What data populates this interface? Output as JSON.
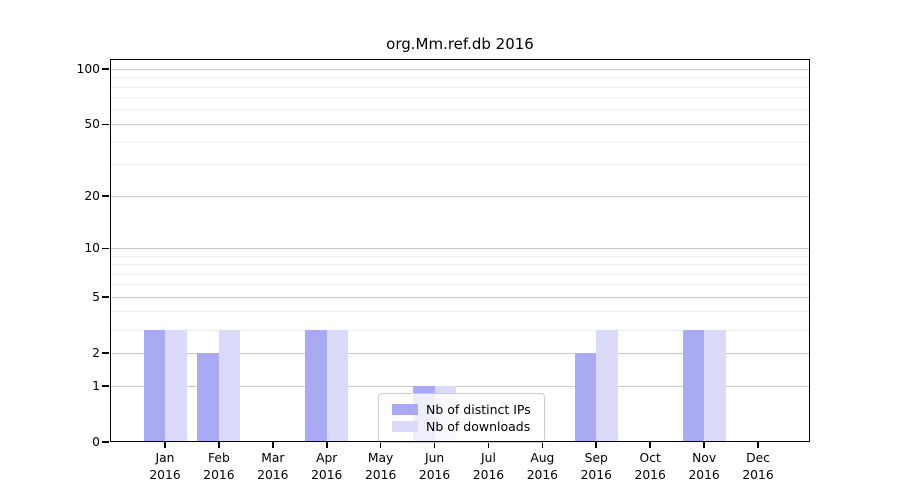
{
  "chart_data": {
    "type": "bar",
    "title": "org.Mm.ref.db 2016",
    "categories": [
      "Jan",
      "Feb",
      "Mar",
      "Apr",
      "May",
      "Jun",
      "Jul",
      "Aug",
      "Sep",
      "Oct",
      "Nov",
      "Dec"
    ],
    "year_label": "2016",
    "series": [
      {
        "name": "Nb of distinct IPs",
        "color": "#a9a9f4",
        "values": [
          3,
          2,
          0,
          3,
          0,
          1,
          0,
          0,
          2,
          0,
          3,
          0
        ]
      },
      {
        "name": "Nb of downloads",
        "color": "#dadaf8",
        "values": [
          3,
          3,
          0,
          3,
          0,
          1,
          0,
          0,
          3,
          0,
          3,
          0
        ]
      }
    ],
    "yscale": "log10(value+1)",
    "ylim": [
      0,
      100
    ],
    "yticks": [
      0,
      1,
      2,
      5,
      10,
      20,
      50,
      100
    ],
    "yticks_minor": [
      3,
      4,
      6,
      7,
      8,
      9,
      30,
      40,
      60,
      70,
      80,
      90
    ],
    "grid": true,
    "legend_position": "lower center",
    "axis_color": "#000000",
    "grid_major_color": "#c9c9c9",
    "grid_minor_color": "#ededed",
    "background_color": "#ffffff"
  }
}
